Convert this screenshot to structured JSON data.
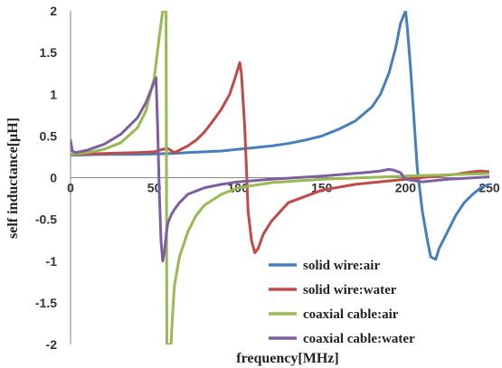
{
  "chart_data": {
    "type": "line",
    "title": "",
    "xlabel": "frequency[MHz]",
    "ylabel": "self inductance[μH]",
    "xlim": [
      0,
      250
    ],
    "ylim": [
      -2,
      2
    ],
    "xticks": [
      "0",
      "50",
      "100",
      "150",
      "200",
      "250"
    ],
    "yticks": [
      "-2",
      "-1.5",
      "-1",
      "-0.5",
      "0",
      "0.5",
      "1",
      "1.5",
      "2"
    ],
    "grid": false,
    "legend_position": "bottom-right",
    "series": [
      {
        "name": "solid wire:air",
        "color": "#4a7ebb",
        "x": [
          0,
          20,
          40,
          60,
          70,
          80,
          90,
          100,
          110,
          120,
          130,
          140,
          150,
          160,
          170,
          180,
          185,
          190,
          194,
          197,
          200,
          201,
          203,
          205,
          207,
          210,
          213,
          215,
          218,
          220,
          225,
          230,
          235,
          240,
          245,
          250
        ],
        "y": [
          0.27,
          0.28,
          0.28,
          0.29,
          0.3,
          0.31,
          0.32,
          0.34,
          0.36,
          0.38,
          0.41,
          0.45,
          0.5,
          0.58,
          0.68,
          0.85,
          1.0,
          1.25,
          1.55,
          1.85,
          2.0,
          1.8,
          1.3,
          0.7,
          0.1,
          -0.4,
          -0.75,
          -0.95,
          -0.98,
          -0.85,
          -0.65,
          -0.45,
          -0.3,
          -0.2,
          -0.12,
          -0.08
        ]
      },
      {
        "name": "solid wire:water",
        "color": "#be4b48",
        "x": [
          0,
          20,
          40,
          50,
          55,
          58,
          62,
          70,
          75,
          80,
          85,
          90,
          95,
          98,
          101,
          102,
          104,
          105,
          106,
          108,
          110,
          112,
          115,
          120,
          130,
          150,
          170,
          200,
          230,
          240,
          245,
          250
        ],
        "y": [
          0.28,
          0.29,
          0.3,
          0.31,
          0.34,
          0.35,
          0.3,
          0.38,
          0.45,
          0.55,
          0.68,
          0.82,
          1.0,
          1.18,
          1.38,
          1.25,
          0.6,
          0.1,
          -0.4,
          -0.75,
          -0.9,
          -0.85,
          -0.68,
          -0.52,
          -0.3,
          -0.15,
          -0.08,
          -0.02,
          0.04,
          0.07,
          0.08,
          0.07
        ]
      },
      {
        "name": "coaxial cable:air",
        "color": "#98b954",
        "x": [
          0,
          10,
          20,
          30,
          40,
          45,
          50,
          53,
          55,
          56,
          57,
          57.5,
          59,
          60,
          61,
          62,
          65,
          70,
          75,
          80,
          90,
          100,
          120,
          150,
          200,
          250
        ],
        "y": [
          0.28,
          0.3,
          0.34,
          0.42,
          0.6,
          0.8,
          1.2,
          1.7,
          2.0,
          2.0,
          2.0,
          -2.0,
          -2.0,
          -2.0,
          -1.6,
          -1.3,
          -0.95,
          -0.65,
          -0.45,
          -0.33,
          -0.2,
          -0.12,
          -0.06,
          -0.02,
          0.02,
          0.05
        ]
      },
      {
        "name": "coaxial cable:water",
        "color": "#7d5fa0",
        "x": [
          0,
          1,
          3,
          10,
          20,
          30,
          40,
          45,
          49,
          51,
          52,
          53,
          54,
          55,
          56,
          57,
          58,
          60,
          62,
          65,
          70,
          80,
          90,
          100,
          120,
          150,
          175,
          185,
          190,
          193,
          197,
          200,
          210,
          225,
          250
        ],
        "y": [
          0.45,
          0.32,
          0.3,
          0.33,
          0.4,
          0.52,
          0.72,
          0.9,
          1.1,
          1.2,
          0.6,
          -0.2,
          -0.75,
          -1.0,
          -0.9,
          -0.7,
          -0.55,
          -0.45,
          -0.38,
          -0.3,
          -0.2,
          -0.12,
          -0.08,
          -0.05,
          -0.02,
          0.02,
          0.06,
          0.08,
          0.1,
          0.09,
          0.06,
          -0.02,
          -0.05,
          -0.02,
          0.01
        ]
      }
    ]
  }
}
